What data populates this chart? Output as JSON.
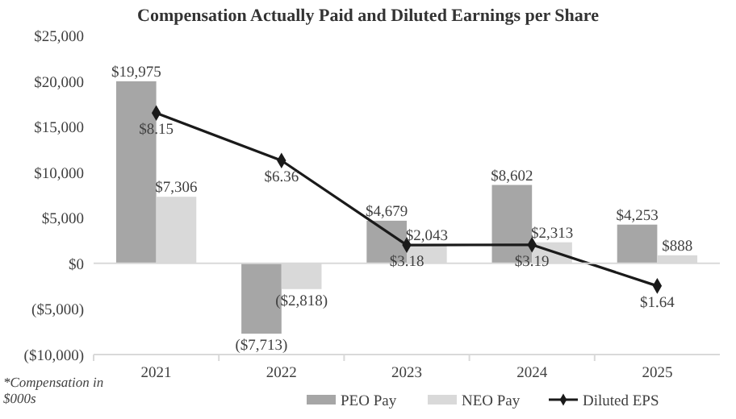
{
  "chart_data": {
    "type": "bar",
    "title": "Compensation Actually Paid and Diluted Earnings per Share",
    "categories": [
      "2021",
      "2022",
      "2023",
      "2024",
      "2025"
    ],
    "series": [
      {
        "name": "PEO Pay",
        "color": "#a6a6a6",
        "values": [
          19975,
          -7713,
          4679,
          8602,
          4253
        ],
        "value_labels": [
          "$19,975",
          "($7,713)",
          "$4,679",
          "$8,602",
          "$4,253"
        ]
      },
      {
        "name": "NEO Pay",
        "color": "#d9d9d9",
        "values": [
          7306,
          -2818,
          2043,
          2313,
          888
        ],
        "value_labels": [
          "$7,306",
          "($2,818)",
          "$2,043",
          "$2,313",
          "$888"
        ]
      },
      {
        "name": "Diluted EPS",
        "type": "line",
        "axis": "y2",
        "color": "#1a1a1a",
        "marker": "diamond",
        "values": [
          8.15,
          6.36,
          3.18,
          3.19,
          1.64
        ],
        "value_labels": [
          "$8.15",
          "$6.36",
          "$3.18",
          "$3.19",
          "$1.64"
        ]
      }
    ],
    "ylim": [
      -10000,
      25000
    ],
    "yticks": [
      {
        "value": -10000,
        "label": "($10,000)"
      },
      {
        "value": -5000,
        "label": "($5,000)"
      },
      {
        "value": 0,
        "label": "$0"
      },
      {
        "value": 5000,
        "label": "$5,000"
      },
      {
        "value": 10000,
        "label": "$10,000"
      },
      {
        "value": 15000,
        "label": "$15,000"
      },
      {
        "value": 20000,
        "label": "$20,000"
      },
      {
        "value": 25000,
        "label": "$25,000"
      }
    ],
    "tick_labels": "xy",
    "legend": "bottom",
    "annotations": [
      "*Compensation in $000s"
    ]
  }
}
